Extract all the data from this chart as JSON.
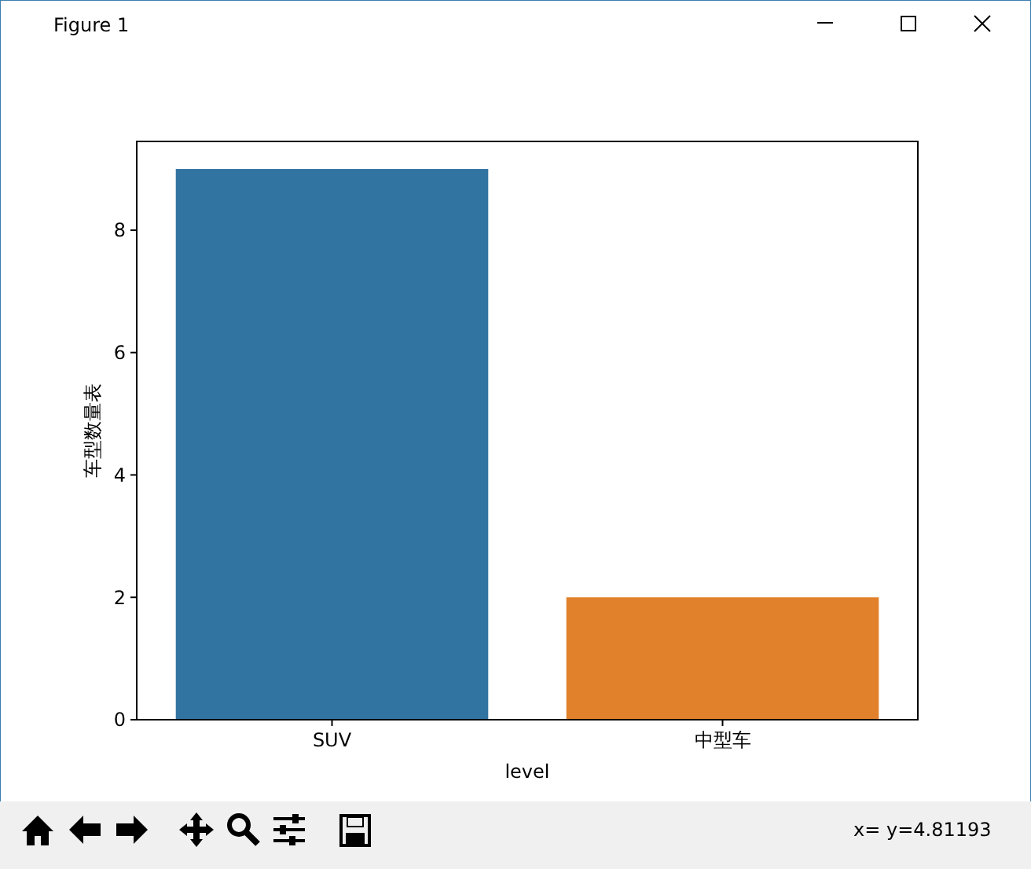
{
  "chart_data": {
    "type": "bar",
    "categories": [
      "SUV",
      "中型车"
    ],
    "values": [
      9,
      2
    ],
    "colors": [
      "#3274a1",
      "#e1812c"
    ],
    "xlabel": "level",
    "ylabel": "车型数量表",
    "ylim": [
      0,
      9.45
    ],
    "yticks": [
      0,
      2,
      4,
      6,
      8
    ],
    "grid": false,
    "annotations": [
      "Figure 1",
      "x= y=4.81193"
    ]
  }
}
